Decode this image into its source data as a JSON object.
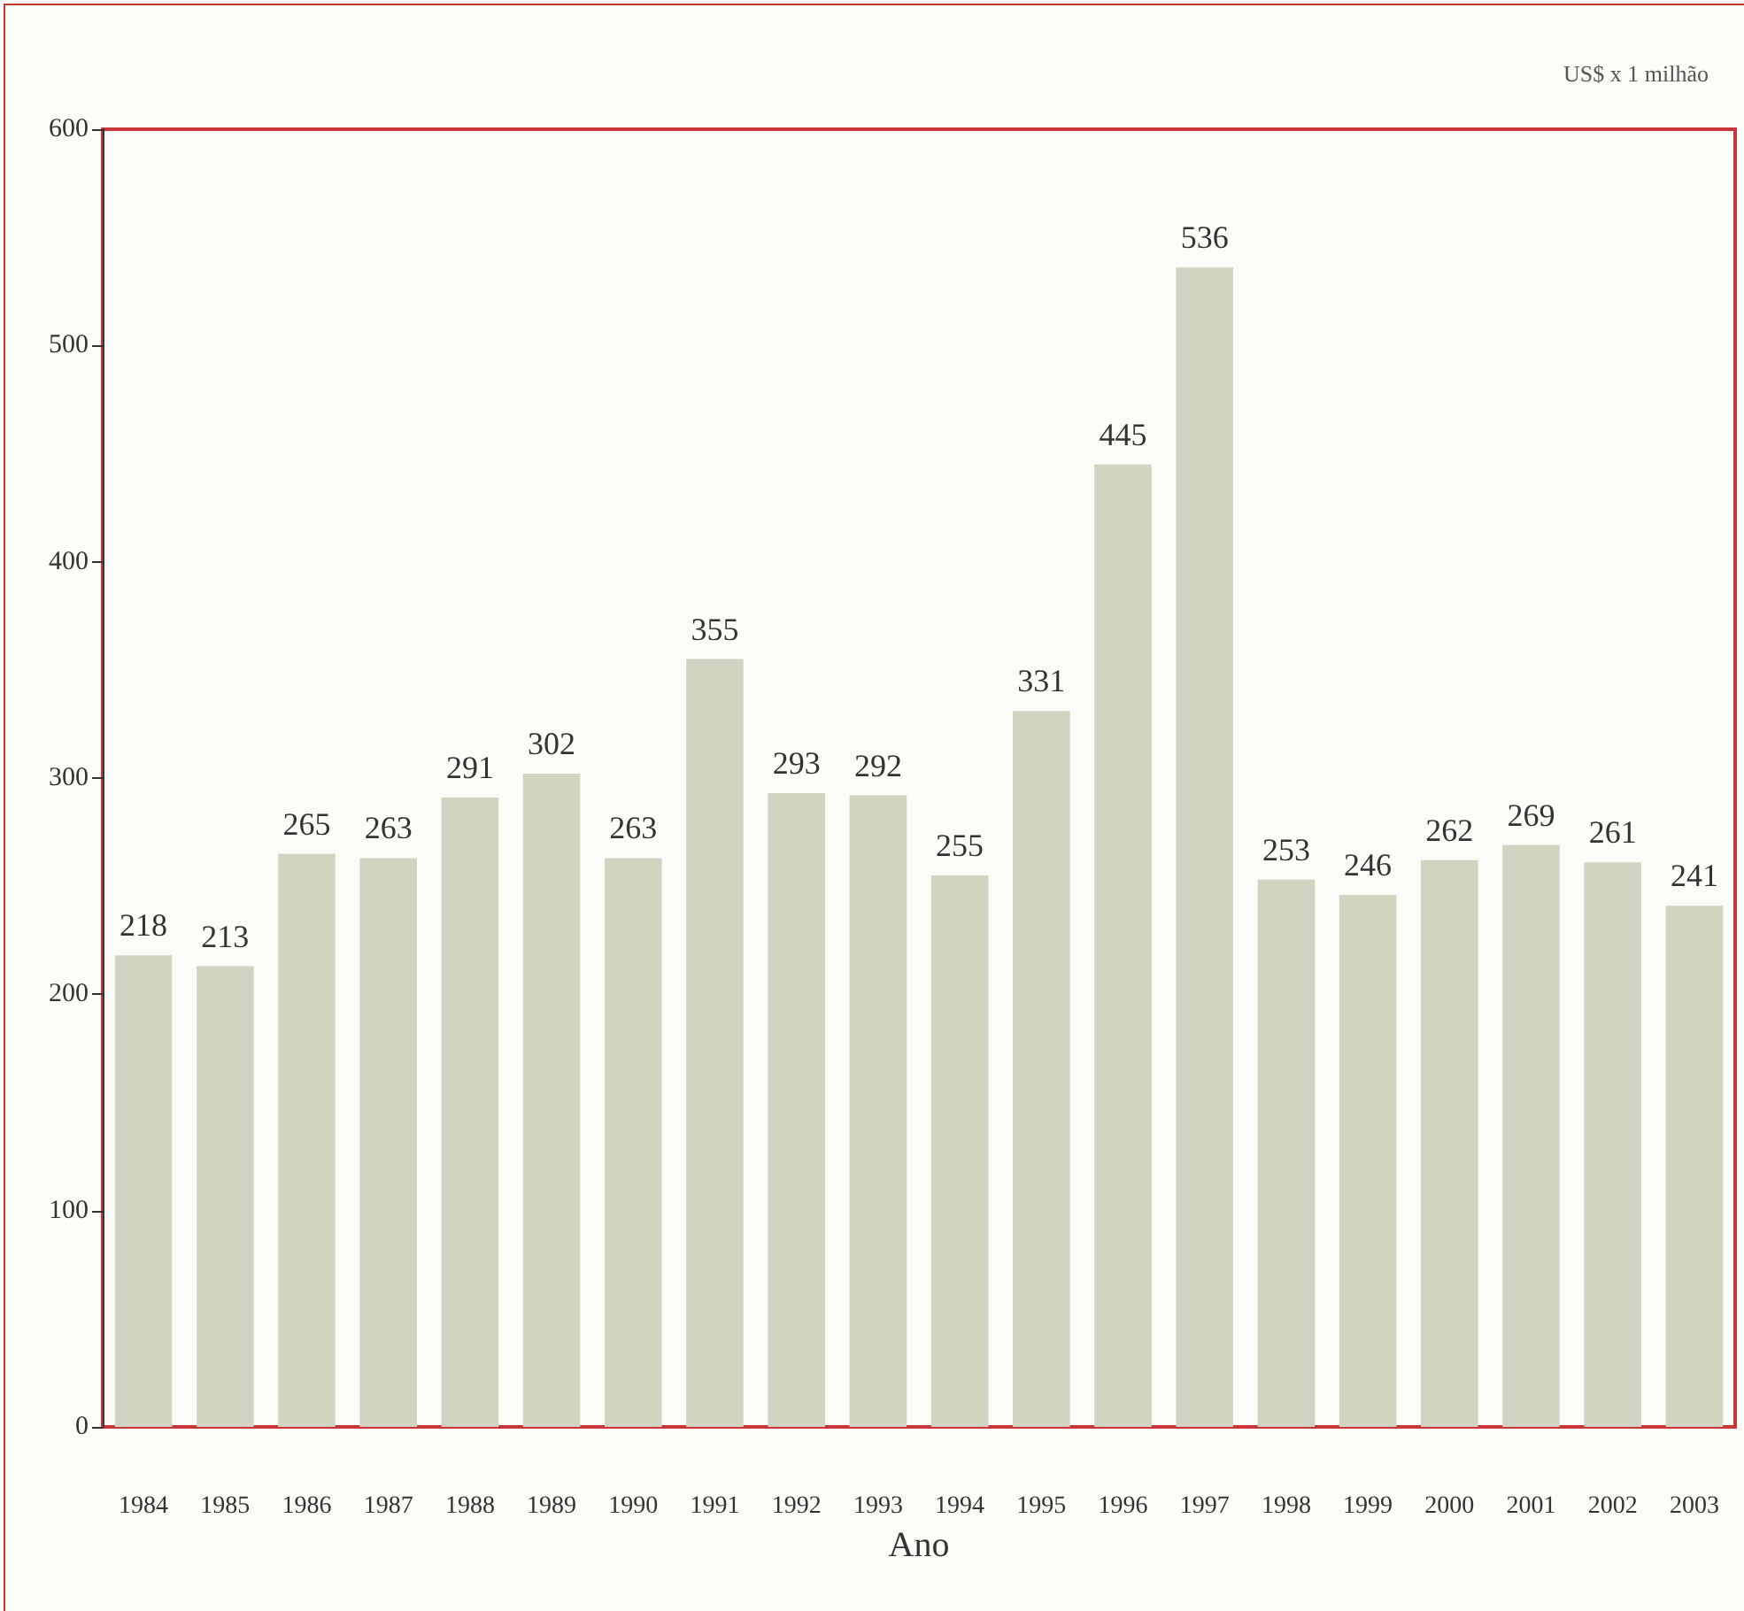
{
  "chart_data": {
    "type": "bar",
    "xlabel": "Ano",
    "annotations": [
      "US$ x 1 milhão"
    ],
    "categories": [
      "1984",
      "1985",
      "1986",
      "1987",
      "1988",
      "1989",
      "1990",
      "1991",
      "1992",
      "1993",
      "1994",
      "1995",
      "1996",
      "1997",
      "1998",
      "1999",
      "2000",
      "2001",
      "2002",
      "2003"
    ],
    "values": [
      218,
      213,
      265,
      263,
      291,
      302,
      263,
      355,
      293,
      292,
      255,
      331,
      445,
      536,
      253,
      246,
      262,
      269,
      261,
      241
    ],
    "color": "#d2d3c1",
    "ylim": [
      0,
      600
    ],
    "yticks": [
      0,
      100,
      200,
      300,
      400,
      500,
      600
    ],
    "grid": false,
    "data_labels": true
  }
}
